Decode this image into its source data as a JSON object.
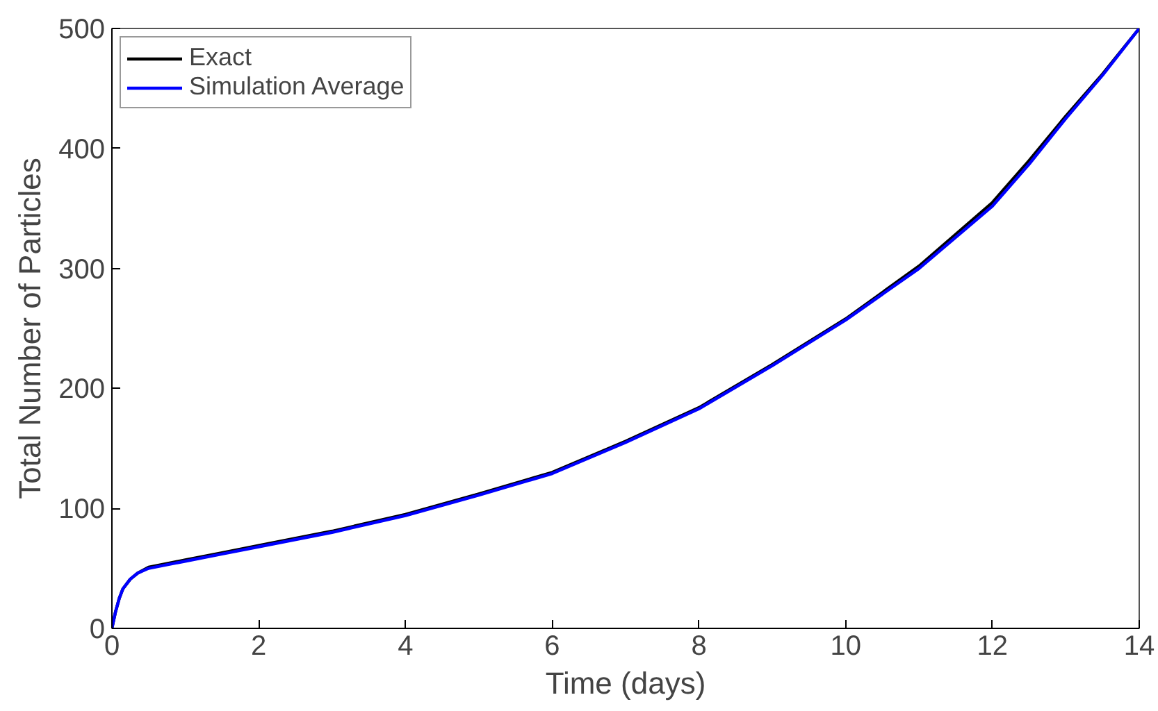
{
  "chart_data": {
    "type": "line",
    "xlabel": "Time (days)",
    "ylabel": "Total Number of Particles",
    "xlim": [
      0,
      14
    ],
    "ylim": [
      0,
      500
    ],
    "xticks": [
      0,
      2,
      4,
      6,
      8,
      10,
      12,
      14
    ],
    "yticks": [
      0,
      100,
      200,
      300,
      400,
      500
    ],
    "grid": false,
    "legend": "top left",
    "marker": "none",
    "line_style": "solid",
    "series": [
      {
        "name": "Exact",
        "color": "#000000",
        "x": [
          0,
          0.05,
          0.1,
          0.15,
          0.25,
          0.35,
          0.5,
          0.75,
          1,
          1.5,
          2,
          3,
          4,
          5,
          6,
          7,
          8,
          9,
          10,
          11,
          12,
          12.5,
          13,
          13.5,
          14
        ],
        "values": [
          0,
          14,
          25,
          33,
          41,
          46,
          51,
          54,
          57,
          63,
          69,
          81,
          95,
          112,
          130,
          156,
          184,
          220,
          258,
          302,
          355,
          390,
          427,
          462,
          500
        ]
      },
      {
        "name": "Simulation Average",
        "color": "#0000ff",
        "x": [
          0,
          0.05,
          0.1,
          0.15,
          0.25,
          0.35,
          0.5,
          0.75,
          1,
          1.5,
          2,
          3,
          4,
          5,
          6,
          7,
          8,
          9,
          10,
          11,
          12,
          12.5,
          13,
          13.5,
          14
        ],
        "values": [
          0,
          14,
          25,
          33,
          41,
          46,
          50,
          53,
          56,
          62,
          68,
          80,
          94,
          111,
          129,
          155,
          183,
          219,
          257,
          300,
          352,
          387,
          425,
          461,
          500
        ]
      }
    ]
  }
}
